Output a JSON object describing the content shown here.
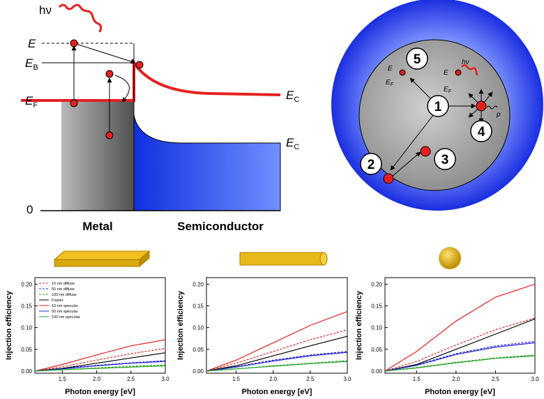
{
  "diagram": {
    "hv": "hν",
    "E": "E",
    "EB": {
      "main": "E",
      "sub": "B"
    },
    "EF": {
      "main": "E",
      "sub": "F"
    },
    "EC1": {
      "main": "E",
      "sub": "C"
    },
    "EC2": {
      "main": "E",
      "sub": "C"
    },
    "zero": "0",
    "metal": "Metal",
    "semiconductor": "Semiconductor",
    "circle": {
      "n1": "1",
      "n2": "2",
      "n3": "3",
      "n4": "4",
      "n5": "5",
      "E_a": "E",
      "EF_a": {
        "main": "E",
        "sub": "F"
      },
      "E_b": "E",
      "EF_b": {
        "main": "E",
        "sub": "F"
      },
      "hv": "hν",
      "p": "p"
    }
  },
  "chart_data": [
    {
      "type": "line",
      "xlabel": "Photon energy [eV]",
      "ylabel": "Injection efficiency",
      "legend": "upper left",
      "xlim": [
        1.1,
        3.0
      ],
      "ylim": [
        -0.005,
        0.215
      ],
      "xticks": [
        1.5,
        {
          "value": 2,
          "label": "2.0"
        },
        2.5,
        {
          "value": 3,
          "label": "3.0"
        }
      ],
      "yticks": [
        {
          "value": 0,
          "label": "0.00"
        },
        {
          "value": 0.05,
          "label": "0.05"
        },
        {
          "value": 0.1,
          "label": "0.10"
        },
        {
          "value": 0.15,
          "label": "0.15"
        },
        {
          "value": 0.2,
          "label": "0.20"
        }
      ],
      "x": [
        1.1,
        1.5,
        2.0,
        2.5,
        3.0
      ],
      "series": [
        {
          "name": "10 nm diffuse",
          "color": "#e02020",
          "dashed": true,
          "values": [
            0,
            0.01,
            0.025,
            0.04,
            0.052
          ]
        },
        {
          "name": "50 nm diffuse",
          "color": "#2020d0",
          "dashed": true,
          "values": [
            0,
            0.006,
            0.013,
            0.019,
            0.024
          ]
        },
        {
          "name": "100 nm diffuse",
          "color": "#20a020",
          "dashed": true,
          "values": [
            0,
            0.003,
            0.007,
            0.011,
            0.014
          ]
        },
        {
          "name": "Fowler",
          "color": "#000000",
          "dashed": false,
          "values": [
            0,
            0.006,
            0.018,
            0.03,
            0.042
          ]
        },
        {
          "name": "10 nm specular",
          "color": "#e02020",
          "dashed": false,
          "values": [
            0,
            0.015,
            0.037,
            0.058,
            0.072
          ]
        },
        {
          "name": "50 nm specular",
          "color": "#2020d0",
          "dashed": false,
          "values": [
            0,
            0.005,
            0.012,
            0.018,
            0.022
          ]
        },
        {
          "name": "100 nm specular",
          "color": "#20a020",
          "dashed": false,
          "values": [
            0,
            0.003,
            0.006,
            0.009,
            0.012
          ]
        }
      ]
    },
    {
      "type": "line",
      "xlabel": "Photon energy [eV]",
      "ylabel": "Injection efficiency",
      "xlim": [
        1.1,
        3.0
      ],
      "ylim": [
        -0.005,
        0.215
      ],
      "xticks": [
        1.5,
        {
          "value": 2,
          "label": "2.0"
        },
        2.5,
        {
          "value": 3,
          "label": "3.0"
        }
      ],
      "yticks": [
        {
          "value": 0,
          "label": "0.00"
        },
        {
          "value": 0.05,
          "label": "0.05"
        },
        {
          "value": 0.1,
          "label": "0.10"
        },
        {
          "value": 0.15,
          "label": "0.15"
        },
        {
          "value": 0.2,
          "label": "0.20"
        }
      ],
      "x": [
        1.1,
        1.5,
        2.0,
        2.5,
        3.0
      ],
      "series": [
        {
          "color": "#e02020",
          "dashed": true,
          "values": [
            0,
            0.018,
            0.045,
            0.072,
            0.095
          ]
        },
        {
          "color": "#2020d0",
          "dashed": true,
          "values": [
            0,
            0.01,
            0.025,
            0.037,
            0.045
          ]
        },
        {
          "color": "#20a020",
          "dashed": true,
          "values": [
            0,
            0.005,
            0.012,
            0.018,
            0.024
          ]
        },
        {
          "color": "#000000",
          "dashed": false,
          "values": [
            0,
            0.012,
            0.035,
            0.058,
            0.08
          ]
        },
        {
          "color": "#e02020",
          "dashed": false,
          "values": [
            0,
            0.025,
            0.065,
            0.105,
            0.137
          ]
        },
        {
          "color": "#2020d0",
          "dashed": false,
          "values": [
            0,
            0.009,
            0.023,
            0.035,
            0.043
          ]
        },
        {
          "color": "#20a020",
          "dashed": false,
          "values": [
            0,
            0.005,
            0.011,
            0.017,
            0.022
          ]
        }
      ]
    },
    {
      "type": "line",
      "xlabel": "Photon energy [eV]",
      "ylabel": "Injection efficiency",
      "xlim": [
        1.1,
        3.0
      ],
      "ylim": [
        -0.005,
        0.215
      ],
      "xticks": [
        1.5,
        {
          "value": 2,
          "label": "2.0"
        },
        2.5,
        {
          "value": 3,
          "label": "3.0"
        }
      ],
      "yticks": [
        {
          "value": 0,
          "label": "0.00"
        },
        {
          "value": 0.05,
          "label": "0.05"
        },
        {
          "value": 0.1,
          "label": "0.10"
        },
        {
          "value": 0.15,
          "label": "0.15"
        },
        {
          "value": 0.2,
          "label": "0.20"
        }
      ],
      "x": [
        1.1,
        1.5,
        2.0,
        2.5,
        3.0
      ],
      "series": [
        {
          "color": "#e02020",
          "dashed": true,
          "values": [
            0,
            0.022,
            0.06,
            0.095,
            0.122
          ]
        },
        {
          "color": "#2020d0",
          "dashed": true,
          "values": [
            0,
            0.014,
            0.04,
            0.058,
            0.068
          ]
        },
        {
          "color": "#20a020",
          "dashed": true,
          "values": [
            0,
            0.008,
            0.02,
            0.03,
            0.037
          ]
        },
        {
          "color": "#000000",
          "dashed": false,
          "values": [
            0,
            0.015,
            0.05,
            0.085,
            0.12
          ]
        },
        {
          "color": "#e02020",
          "dashed": false,
          "values": [
            0,
            0.045,
            0.115,
            0.17,
            0.2
          ]
        },
        {
          "color": "#2020d0",
          "dashed": false,
          "values": [
            0,
            0.013,
            0.038,
            0.055,
            0.065
          ]
        },
        {
          "color": "#20a020",
          "dashed": false,
          "values": [
            0,
            0.007,
            0.019,
            0.029,
            0.035
          ]
        }
      ]
    }
  ]
}
